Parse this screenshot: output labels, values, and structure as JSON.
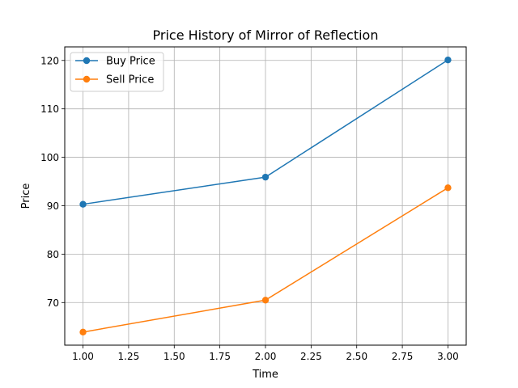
{
  "chart_data": {
    "type": "line",
    "title": "Price History of Mirror of Reflection",
    "xlabel": "Time",
    "ylabel": "Price",
    "x": [
      1.0,
      2.0,
      3.0
    ],
    "xlim": [
      0.9,
      3.1
    ],
    "ylim": [
      61.2,
      122.8
    ],
    "xticks": [
      "1.00",
      "1.25",
      "1.50",
      "1.75",
      "2.00",
      "2.25",
      "2.50",
      "2.75",
      "3.00"
    ],
    "xtick_values": [
      1.0,
      1.25,
      1.5,
      1.75,
      2.0,
      2.25,
      2.5,
      2.75,
      3.0
    ],
    "yticks": [
      "70",
      "80",
      "90",
      "100",
      "110",
      "120"
    ],
    "ytick_values": [
      70,
      80,
      90,
      100,
      110,
      120
    ],
    "grid": true,
    "legend_position": "upper-left",
    "series": [
      {
        "name": "Buy Price",
        "color": "#1f77b4",
        "marker": "circle",
        "values": [
          90.3,
          95.9,
          120.1
        ]
      },
      {
        "name": "Sell Price",
        "color": "#ff7f0e",
        "marker": "circle",
        "values": [
          63.9,
          70.5,
          93.7
        ]
      }
    ]
  }
}
